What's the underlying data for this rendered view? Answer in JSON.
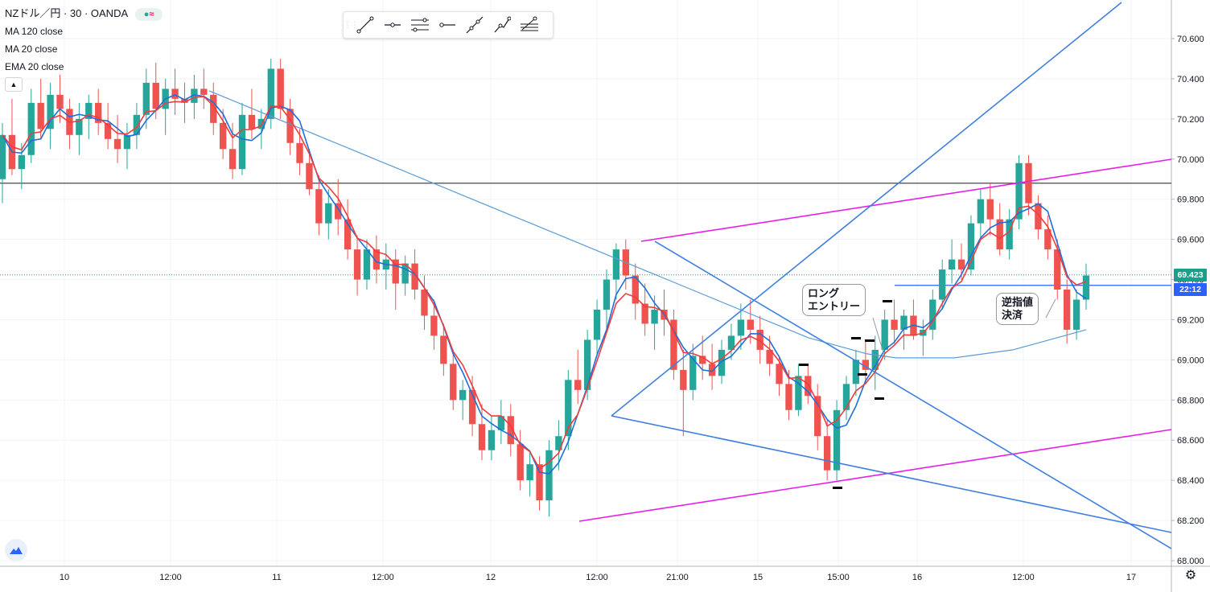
{
  "symbol": {
    "name": "NZドル／円",
    "interval": "30",
    "exchange": "OANDA",
    "title": "NZドル／円 · 30 · OANDA"
  },
  "indicators": [
    {
      "label": "MA 120 close",
      "color": "#5b9bd5"
    },
    {
      "label": "MA 20 close",
      "color": "#1e6fd9"
    },
    {
      "label": "EMA 20 close",
      "color": "#f03c3c"
    }
  ],
  "drawing_toolbar": {
    "tools": [
      "trend-line-tool",
      "ray-tool",
      "parallel-channel-tool",
      "horizontal-ray-tool",
      "extended-line-tool",
      "polyline-tool",
      "fib-tool"
    ]
  },
  "price_axis": {
    "labels": [
      "70.600",
      "70.400",
      "70.200",
      "70.000",
      "69.800",
      "69.600",
      "69.400",
      "69.200",
      "69.000",
      "68.800",
      "68.600",
      "68.400",
      "68.200",
      "68.000"
    ],
    "last_price": "69.423",
    "countdown": "22:12",
    "hidden_level": "69.371"
  },
  "time_axis": {
    "labels": [
      "10",
      "12:00",
      "11",
      "12:00",
      "12",
      "12:00",
      "21:00",
      "15",
      "15:00",
      "16",
      "12:00",
      "17"
    ]
  },
  "annotations": {
    "entry": [
      "ロング",
      "エントリー"
    ],
    "exit": [
      "逆指値",
      "決済"
    ]
  },
  "colors": {
    "up": "#26a69a",
    "down": "#ef5350",
    "ma120": "#5b9bd5",
    "ma20": "#1e6fd9",
    "ema20": "#f03c3c",
    "channel": "#e81ee8",
    "trend": "#3f7fe0",
    "last_price_bg": "#1a9f8a",
    "level_bg": "#2962ff"
  },
  "chart_data": {
    "type": "candlestick",
    "y_range": [
      67.98,
      70.78
    ],
    "candles": [
      [
        69.9,
        70.18,
        69.78,
        70.12
      ],
      [
        70.12,
        70.3,
        69.92,
        69.95
      ],
      [
        69.95,
        70.08,
        69.85,
        70.02
      ],
      [
        70.02,
        70.35,
        69.98,
        70.28
      ],
      [
        70.28,
        70.4,
        70.1,
        70.15
      ],
      [
        70.15,
        70.38,
        70.05,
        70.32
      ],
      [
        70.32,
        70.42,
        70.18,
        70.25
      ],
      [
        70.25,
        70.3,
        70.05,
        70.12
      ],
      [
        70.12,
        70.28,
        70.02,
        70.2
      ],
      [
        70.2,
        70.32,
        70.1,
        70.28
      ],
      [
        70.28,
        70.35,
        70.12,
        70.18
      ],
      [
        70.18,
        70.28,
        70.05,
        70.1
      ],
      [
        70.1,
        70.22,
        69.98,
        70.05
      ],
      [
        70.05,
        70.18,
        69.95,
        70.12
      ],
      [
        70.12,
        70.28,
        70.05,
        70.22
      ],
      [
        70.22,
        70.45,
        70.15,
        70.38
      ],
      [
        70.38,
        70.48,
        70.2,
        70.25
      ],
      [
        70.25,
        70.4,
        70.12,
        70.35
      ],
      [
        70.35,
        70.45,
        70.22,
        70.3
      ],
      [
        70.3,
        70.38,
        70.18,
        70.28
      ],
      [
        70.28,
        70.42,
        70.2,
        70.35
      ],
      [
        70.35,
        70.45,
        70.25,
        70.32
      ],
      [
        70.32,
        70.38,
        70.12,
        70.18
      ],
      [
        70.18,
        70.25,
        70.0,
        70.05
      ],
      [
        70.05,
        70.18,
        69.9,
        69.95
      ],
      [
        69.95,
        70.28,
        69.92,
        70.22
      ],
      [
        70.22,
        70.35,
        70.1,
        70.15
      ],
      [
        70.15,
        70.25,
        70.05,
        70.2
      ],
      [
        70.2,
        70.5,
        70.15,
        70.45
      ],
      [
        70.45,
        70.5,
        70.2,
        70.25
      ],
      [
        70.25,
        70.3,
        70.02,
        70.08
      ],
      [
        70.08,
        70.15,
        69.92,
        69.98
      ],
      [
        69.98,
        70.05,
        69.82,
        69.85
      ],
      [
        69.85,
        69.92,
        69.62,
        69.68
      ],
      [
        69.68,
        69.85,
        69.6,
        69.78
      ],
      [
        69.78,
        69.9,
        69.62,
        69.7
      ],
      [
        69.7,
        69.8,
        69.5,
        69.55
      ],
      [
        69.55,
        69.62,
        69.32,
        69.4
      ],
      [
        69.4,
        69.6,
        69.35,
        69.55
      ],
      [
        69.55,
        69.62,
        69.38,
        69.45
      ],
      [
        69.45,
        69.58,
        69.35,
        69.5
      ],
      [
        69.5,
        69.55,
        69.25,
        69.38
      ],
      [
        69.38,
        69.52,
        69.32,
        69.48
      ],
      [
        69.48,
        69.55,
        69.3,
        69.35
      ],
      [
        69.35,
        69.42,
        69.15,
        69.22
      ],
      [
        69.22,
        69.3,
        69.05,
        69.12
      ],
      [
        69.12,
        69.18,
        68.92,
        68.98
      ],
      [
        68.98,
        69.05,
        68.75,
        68.8
      ],
      [
        68.8,
        68.9,
        68.7,
        68.85
      ],
      [
        68.85,
        68.92,
        68.62,
        68.68
      ],
      [
        68.68,
        68.78,
        68.5,
        68.55
      ],
      [
        68.55,
        68.72,
        68.5,
        68.65
      ],
      [
        68.65,
        68.8,
        68.58,
        68.72
      ],
      [
        68.72,
        68.78,
        68.52,
        68.58
      ],
      [
        68.58,
        68.65,
        68.35,
        68.4
      ],
      [
        68.4,
        68.55,
        68.32,
        68.48
      ],
      [
        68.48,
        68.52,
        68.25,
        68.3
      ],
      [
        68.3,
        68.6,
        68.22,
        68.55
      ],
      [
        68.55,
        68.7,
        68.45,
        68.62
      ],
      [
        68.62,
        68.95,
        68.55,
        68.9
      ],
      [
        68.9,
        69.05,
        68.78,
        68.85
      ],
      [
        68.85,
        69.15,
        68.8,
        69.1
      ],
      [
        69.1,
        69.3,
        69.02,
        69.25
      ],
      [
        69.25,
        69.45,
        69.15,
        69.4
      ],
      [
        69.4,
        69.58,
        69.3,
        69.55
      ],
      [
        69.55,
        69.6,
        69.35,
        69.42
      ],
      [
        69.42,
        69.48,
        69.2,
        69.28
      ],
      [
        69.28,
        69.38,
        69.12,
        69.18
      ],
      [
        69.18,
        69.32,
        69.05,
        69.25
      ],
      [
        69.25,
        69.35,
        69.12,
        69.2
      ],
      [
        69.2,
        69.25,
        68.9,
        68.95
      ],
      [
        68.95,
        69.05,
        68.62,
        68.85
      ],
      [
        68.85,
        69.08,
        68.8,
        69.02
      ],
      [
        69.02,
        69.12,
        68.9,
        68.98
      ],
      [
        68.98,
        69.08,
        68.85,
        68.92
      ],
      [
        68.92,
        69.1,
        68.88,
        69.05
      ],
      [
        69.05,
        69.18,
        69.0,
        69.12
      ],
      [
        69.12,
        69.28,
        69.05,
        69.2
      ],
      [
        69.2,
        69.3,
        69.08,
        69.15
      ],
      [
        69.15,
        69.22,
        68.98,
        69.05
      ],
      [
        69.05,
        69.12,
        68.92,
        68.98
      ],
      [
        68.98,
        69.02,
        68.82,
        68.88
      ],
      [
        68.88,
        68.95,
        68.7,
        68.75
      ],
      [
        68.75,
        68.98,
        68.72,
        68.92
      ],
      [
        68.92,
        68.98,
        68.78,
        68.82
      ],
      [
        68.82,
        68.88,
        68.55,
        68.62
      ],
      [
        68.62,
        68.7,
        68.4,
        68.45
      ],
      [
        68.45,
        68.8,
        68.4,
        68.75
      ],
      [
        68.75,
        68.92,
        68.7,
        68.88
      ],
      [
        68.88,
        69.05,
        68.82,
        69.0
      ],
      [
        69.0,
        69.1,
        68.88,
        68.95
      ],
      [
        68.95,
        69.12,
        68.85,
        69.05
      ],
      [
        69.05,
        69.25,
        69.0,
        69.2
      ],
      [
        69.2,
        69.3,
        69.08,
        69.15
      ],
      [
        69.15,
        69.25,
        69.05,
        69.22
      ],
      [
        69.22,
        69.3,
        69.1,
        69.12
      ],
      [
        69.12,
        69.2,
        69.02,
        69.15
      ],
      [
        69.15,
        69.35,
        69.1,
        69.3
      ],
      [
        69.3,
        69.5,
        69.25,
        69.45
      ],
      [
        69.45,
        69.6,
        69.38,
        69.5
      ],
      [
        69.5,
        69.58,
        69.4,
        69.45
      ],
      [
        69.45,
        69.72,
        69.42,
        69.68
      ],
      [
        69.68,
        69.85,
        69.6,
        69.8
      ],
      [
        69.8,
        69.88,
        69.62,
        69.7
      ],
      [
        69.7,
        69.78,
        69.52,
        69.55
      ],
      [
        69.55,
        69.75,
        69.5,
        69.7
      ],
      [
        69.7,
        70.02,
        69.65,
        69.98
      ],
      [
        69.98,
        70.02,
        69.72,
        69.78
      ],
      [
        69.78,
        69.82,
        69.6,
        69.65
      ],
      [
        69.65,
        69.72,
        69.5,
        69.55
      ],
      [
        69.55,
        69.6,
        69.3,
        69.35
      ],
      [
        69.35,
        69.4,
        69.08,
        69.15
      ],
      [
        69.15,
        69.35,
        69.1,
        69.3
      ],
      [
        69.3,
        69.48,
        69.25,
        69.42
      ]
    ],
    "series": [
      {
        "name": "MA 120 close",
        "values": [
          70.34,
          70.31,
          70.28,
          70.25,
          70.22,
          70.19,
          70.16,
          70.13,
          70.1,
          70.07,
          70.04,
          70.01,
          69.98,
          69.95,
          69.92,
          69.89,
          69.86,
          69.83,
          69.8,
          69.77,
          69.74,
          69.71,
          69.68,
          69.65,
          69.62,
          69.59,
          69.56,
          69.53,
          69.5,
          69.47,
          69.44,
          69.41,
          69.38,
          69.35,
          69.32,
          69.29,
          69.26,
          69.23,
          69.2,
          69.17,
          69.14,
          69.11,
          69.09,
          69.07,
          69.05,
          69.03,
          69.02,
          69.01,
          69.01,
          69.01,
          69.01,
          69.01,
          69.02,
          69.03,
          69.04,
          69.05,
          69.07,
          69.09,
          69.11,
          69.13,
          69.15
        ]
      },
      {
        "name": "MA 20 close",
        "values": []
      },
      {
        "name": "EMA 20 close",
        "values": []
      }
    ],
    "horizontal_lines": [
      69.88,
      69.371
    ]
  }
}
